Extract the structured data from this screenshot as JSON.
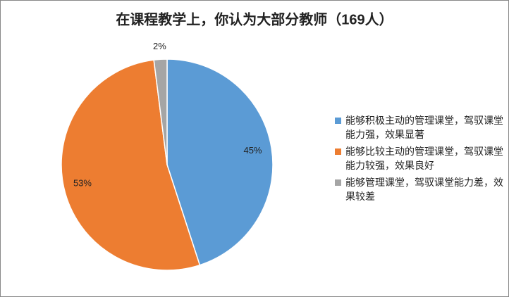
{
  "chart_data": {
    "type": "pie",
    "title": "在课程教学上，你认为大部分教师（169人）",
    "categories": [
      "能够积极主动的管理课堂，驾驭课堂能力强，效果显著",
      "能够比较主动的管理课堂，驾驭课堂能力较强，效果良好",
      "能够管理课堂，驾驭课堂能力差，效果较差"
    ],
    "values": [
      45,
      53,
      2
    ],
    "value_labels": [
      "45%",
      "53%",
      "2%"
    ],
    "colors": [
      "#5b9bd5",
      "#ed7d31",
      "#a5a5a5"
    ],
    "legend": "right"
  }
}
